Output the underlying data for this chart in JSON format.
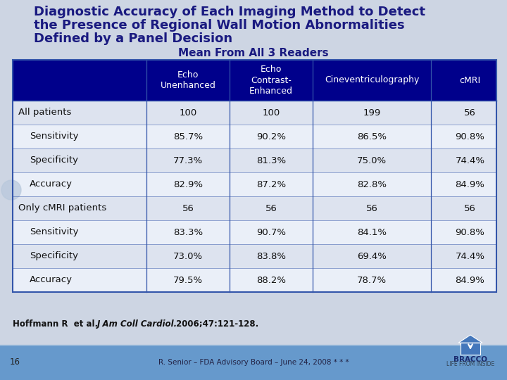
{
  "title_line1": "Diagnostic Accuracy of Each Imaging Method to Detect",
  "title_line2": "the Presence of Regional Wall Motion Abnormalities",
  "title_line3": "Defined by a Panel Decision",
  "subtitle": "Mean From All 3 Readers",
  "col_headers": [
    "Echo\nUnenhanced",
    "Echo\nContrast-\nEnhanced",
    "Cineventriculography",
    "cMRI"
  ],
  "row_labels": [
    "All patients",
    "  Sensitivity",
    "  Specificity",
    "  Accuracy",
    "Only cMRI patients",
    "  Sensitivity",
    "  Specificity",
    "  Accuracy"
  ],
  "table_data": [
    [
      "100",
      "100",
      "199",
      "56"
    ],
    [
      "85.7%",
      "90.2%",
      "86.5%",
      "90.8%"
    ],
    [
      "77.3%",
      "81.3%",
      "75.0%",
      "74.4%"
    ],
    [
      "82.9%",
      "87.2%",
      "82.8%",
      "84.9%"
    ],
    [
      "56",
      "56",
      "56",
      "56"
    ],
    [
      "83.3%",
      "90.7%",
      "84.1%",
      "90.8%"
    ],
    [
      "73.0%",
      "83.8%",
      "69.4%",
      "74.4%"
    ],
    [
      "79.5%",
      "88.2%",
      "78.7%",
      "84.9%"
    ]
  ],
  "bg_color": "#cdd5e3",
  "header_bg": "#00008B",
  "header_text": "#ffffff",
  "row_odd_bg": "#dde3ef",
  "row_even_bg": "#eaeff8",
  "title_color": "#1a1a80",
  "subtitle_color": "#1a1a80",
  "border_color": "#3355aa",
  "bottom_bar_color": "#6699cc",
  "page_num": "16",
  "bottom_center_text": "R. Senior – FDA Advisory Board – June 24, 2008 * * *"
}
